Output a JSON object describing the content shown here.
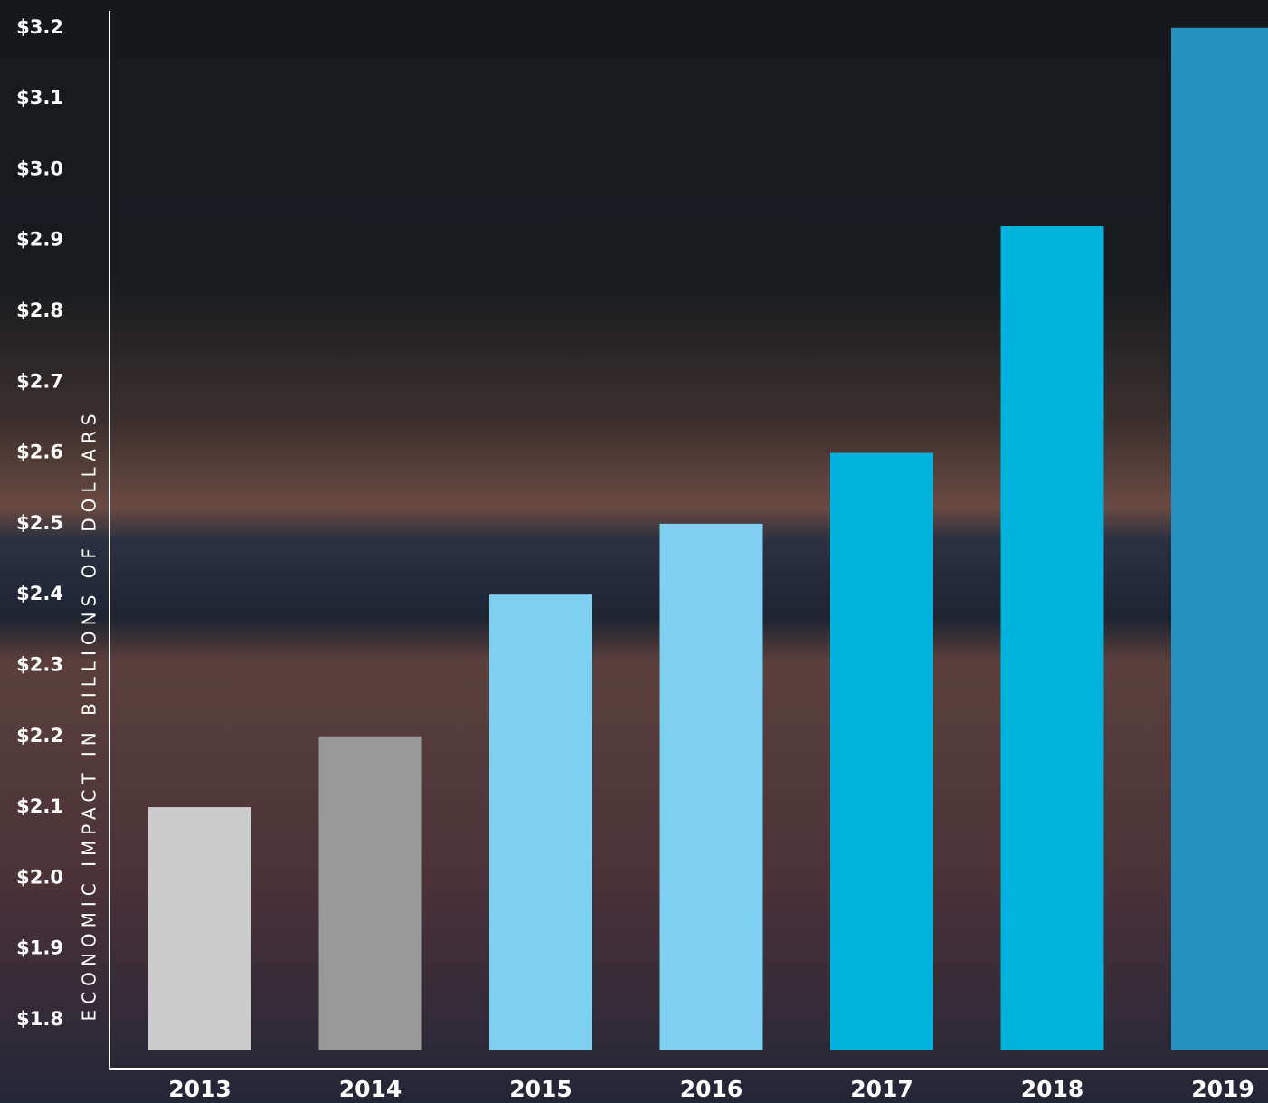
{
  "chart_data": {
    "type": "bar",
    "y_label": "ECONOMIC IMPACT IN BILLIONS OF DOLLARS",
    "categories": [
      "2013",
      "2014",
      "2015",
      "2016",
      "2017",
      "2018",
      "2019"
    ],
    "values": [
      2.1,
      2.2,
      2.4,
      2.5,
      2.6,
      2.92,
      3.2
    ],
    "colors": [
      "#cccccc",
      "#999999",
      "#7fd0f0",
      "#7fd0f0",
      "#00b2dc",
      "#00b2dc",
      "#2390c0"
    ],
    "ylim": [
      1.731,
      3.224
    ],
    "yticks": [
      {
        "value": 1.8,
        "label": "$1.8"
      },
      {
        "value": 1.9,
        "label": "$1.9"
      },
      {
        "value": 2.0,
        "label": "$2.0"
      },
      {
        "value": 2.1,
        "label": "$2.1"
      },
      {
        "value": 2.2,
        "label": "$2.2"
      },
      {
        "value": 2.3,
        "label": "$2.3"
      },
      {
        "value": 2.4,
        "label": "$2.4"
      },
      {
        "value": 2.5,
        "label": "$2.5"
      },
      {
        "value": 2.6,
        "label": "$2.6"
      },
      {
        "value": 2.7,
        "label": "$2.7"
      },
      {
        "value": 2.8,
        "label": "$2.8"
      },
      {
        "value": 2.9,
        "label": "$2.9"
      },
      {
        "value": 3.0,
        "label": "$3.0"
      },
      {
        "value": 3.1,
        "label": "$3.1"
      },
      {
        "value": 3.2,
        "label": "$3.2"
      }
    ],
    "grid": false
  }
}
